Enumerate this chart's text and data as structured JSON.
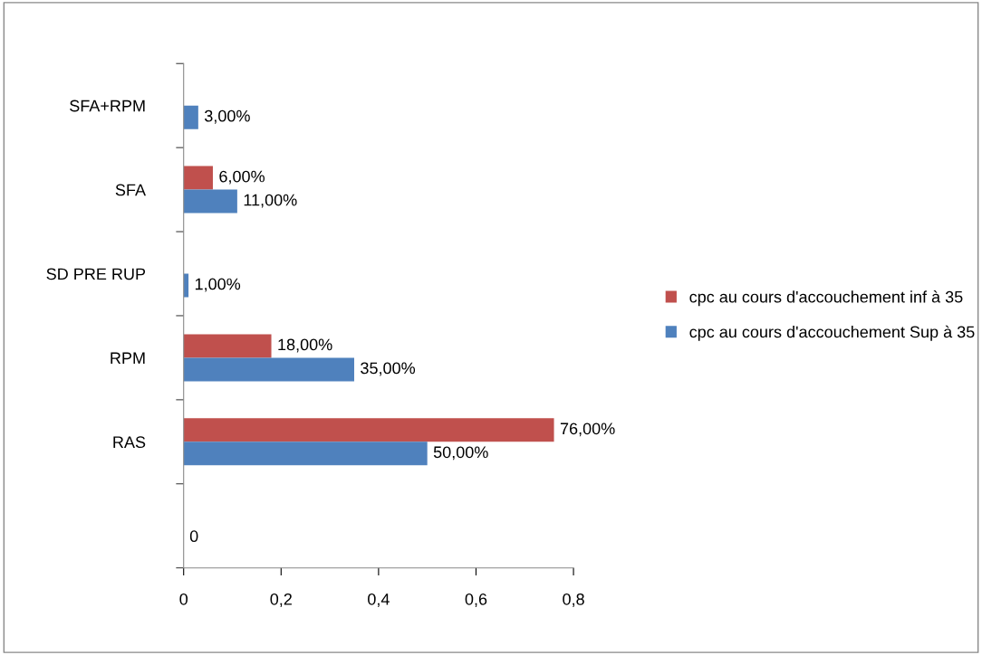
{
  "chart_data": {
    "type": "bar",
    "orientation": "horizontal",
    "categories": [
      "SFA+RPM",
      "SFA",
      "SD PRE RUP",
      "RPM",
      "RAS",
      null
    ],
    "series": [
      {
        "name": "cpc au cours d'accouchement inf à 35",
        "color": "#c0504d",
        "values": [
          0,
          0.06,
          0,
          0.18,
          0.76,
          null
        ],
        "value_labels": [
          null,
          "6,00%",
          null,
          "18,00%",
          "76,00%",
          null
        ]
      },
      {
        "name": "cpc au cours d'accouchement Sup à 35",
        "color": "#4f81bd",
        "values": [
          0.03,
          0.11,
          0.01,
          0.35,
          0.5,
          0
        ],
        "value_labels": [
          "3,00%",
          "11,00%",
          "1,00%",
          "35,00%",
          "50,00%",
          "0"
        ]
      }
    ],
    "xlim": [
      0,
      0.8
    ],
    "xticks": [
      0,
      {
        "value": 0.2,
        "label": "0,2"
      },
      {
        "value": 0.4,
        "label": "0,4"
      },
      {
        "value": 0.6,
        "label": "0,6"
      },
      {
        "value": 0.8,
        "label": "0,8"
      }
    ],
    "grid": false,
    "legend": "right"
  }
}
